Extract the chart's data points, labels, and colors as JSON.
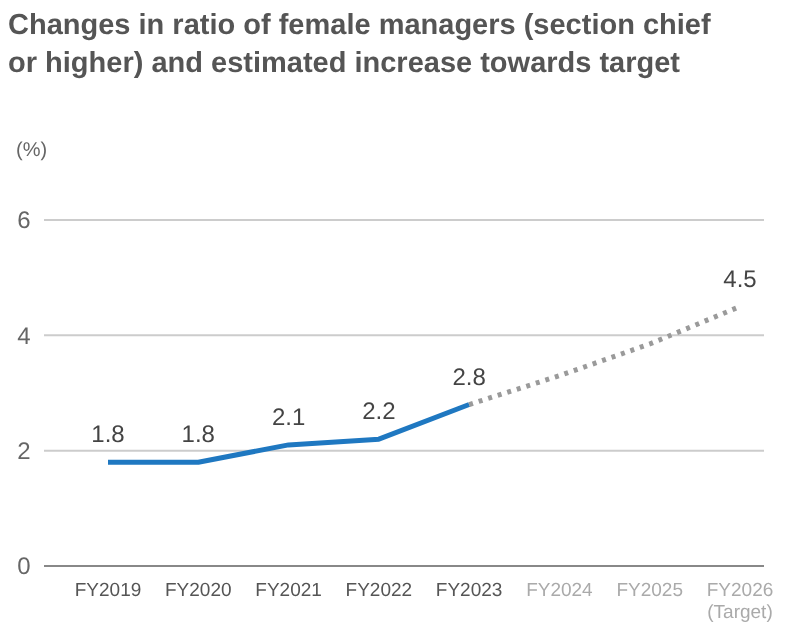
{
  "chart_data": {
    "type": "line",
    "title": "Changes in ratio of female managers (section chief or higher) and estimated increase towards target",
    "ylabel": "(%)",
    "categories": [
      "FY2019",
      "FY2020",
      "FY2021",
      "FY2022",
      "FY2023",
      "FY2024",
      "FY2025",
      "FY2026\n(Target)"
    ],
    "series": [
      {
        "color": "#1f78c1",
        "line_style": "solid",
        "values": [
          1.8,
          1.8,
          2.1,
          2.2,
          2.8,
          null,
          null,
          null
        ],
        "value_labels": [
          "1.8",
          "1.8",
          "2.1",
          "2.2",
          "2.8",
          null,
          null,
          null
        ]
      },
      {
        "color": "#9a9a9a",
        "line_style": "dotted",
        "values": [
          null,
          null,
          null,
          null,
          2.8,
          3.3,
          3.85,
          4.5
        ],
        "value_labels": [
          null,
          null,
          null,
          null,
          null,
          null,
          null,
          "4.5"
        ]
      }
    ],
    "ylim": [
      0,
      6
    ],
    "yticks": [
      0,
      2,
      4,
      6
    ],
    "grid": "y",
    "marker": "none"
  }
}
